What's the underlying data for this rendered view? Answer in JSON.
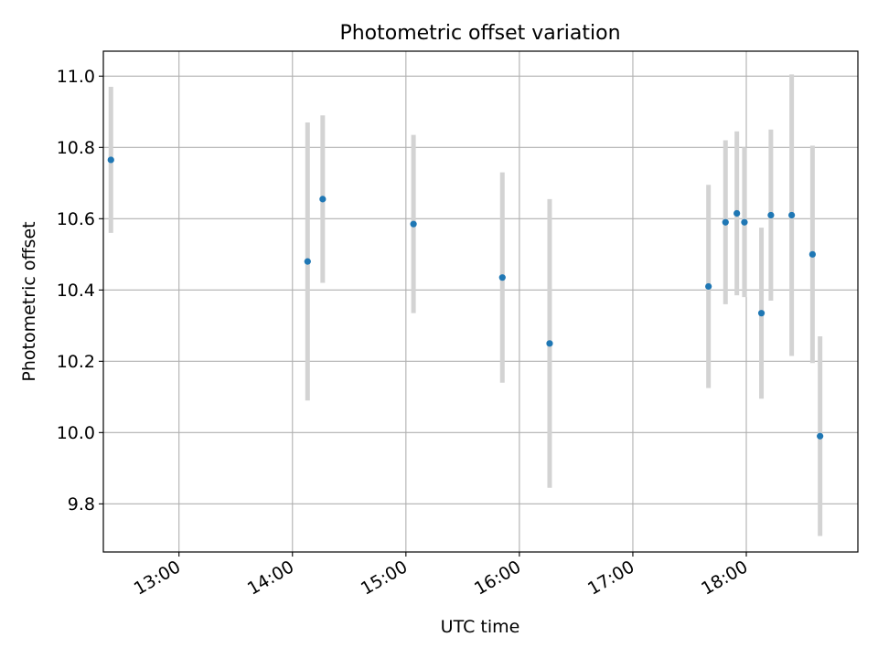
{
  "chart_data": {
    "type": "scatter",
    "title": "Photometric offset variation",
    "xlabel": "UTC time",
    "ylabel": "Photometric offset",
    "x_type": "time",
    "x_ticks": [
      "13:00",
      "14:00",
      "15:00",
      "16:00",
      "17:00",
      "18:00"
    ],
    "y_ticks": [
      "9.8",
      "10.0",
      "10.2",
      "10.4",
      "10.6",
      "10.8",
      "11.0"
    ],
    "xlim": [
      "12:20",
      "18:59"
    ],
    "ylim": [
      9.665,
      11.07
    ],
    "grid": true,
    "series": [
      {
        "color": "#1f77b4",
        "errorbar_color": "#d3d3d3",
        "points": [
          {
            "x": "12:24",
            "y": 10.765,
            "yerr": 0.205
          },
          {
            "x": "14:08",
            "y": 10.48,
            "yerr": 0.39
          },
          {
            "x": "14:16",
            "y": 10.655,
            "yerr": 0.235
          },
          {
            "x": "15:04",
            "y": 10.585,
            "yerr": 0.25
          },
          {
            "x": "15:51",
            "y": 10.435,
            "yerr": 0.295
          },
          {
            "x": "16:16",
            "y": 10.25,
            "yerr": 0.405
          },
          {
            "x": "17:40",
            "y": 10.41,
            "yerr": 0.285
          },
          {
            "x": "17:49",
            "y": 10.59,
            "yerr": 0.23
          },
          {
            "x": "17:55",
            "y": 10.615,
            "yerr": 0.23
          },
          {
            "x": "17:59",
            "y": 10.59,
            "yerr": 0.21
          },
          {
            "x": "18:08",
            "y": 10.335,
            "yerr": 0.24
          },
          {
            "x": "18:13",
            "y": 10.61,
            "yerr": 0.24
          },
          {
            "x": "18:24",
            "y": 10.61,
            "yerr": 0.395
          },
          {
            "x": "18:35",
            "y": 10.5,
            "yerr": 0.305
          },
          {
            "x": "18:39",
            "y": 9.99,
            "yerr": 0.28
          }
        ]
      }
    ]
  }
}
